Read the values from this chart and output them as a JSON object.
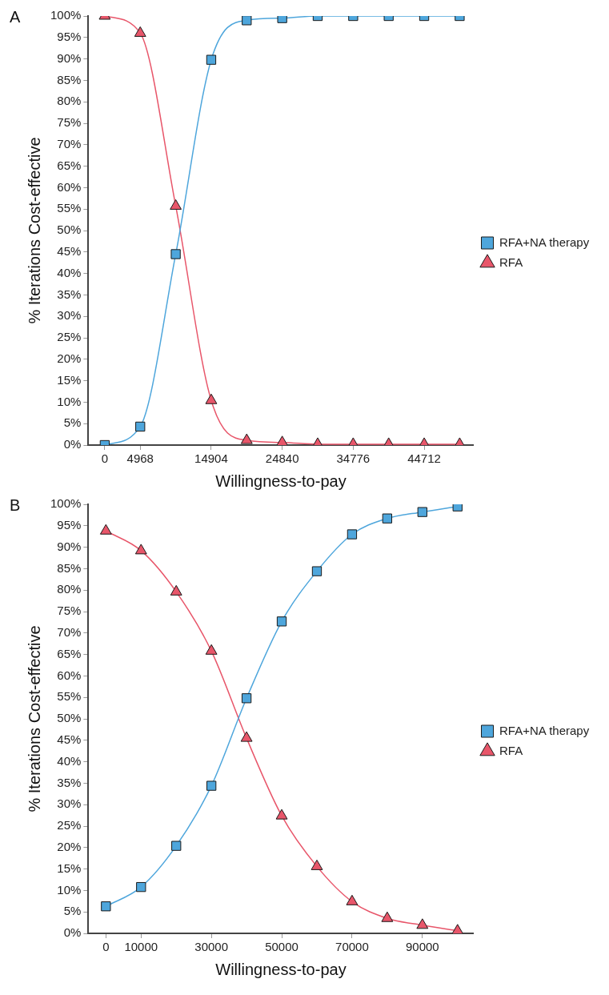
{
  "chart_data": [
    {
      "type": "line",
      "xlabel": "Willingness-to-pay",
      "ylabel": "% Iterations Cost-effective",
      "annotations": [
        "A"
      ],
      "x": [
        0,
        4968,
        9936,
        14904,
        19872,
        24840,
        29808,
        34776,
        39744,
        44712,
        49680
      ],
      "series": [
        {
          "name": "RFA+NA therapy",
          "color": "#4ea6dc",
          "marker": "square",
          "values": [
            0,
            4.3,
            44.5,
            89.8,
            99,
            99.5,
            100,
            100,
            100,
            100,
            100
          ]
        },
        {
          "name": "RFA",
          "color": "#e8566a",
          "marker": "triangle",
          "values": [
            100,
            96,
            55.7,
            10.4,
            1.1,
            0.6,
            0.2,
            0.2,
            0.2,
            0.2,
            0.2
          ]
        }
      ],
      "xlim": [
        -2300,
        51600
      ],
      "xticks": [
        0,
        4968,
        14904,
        24840,
        34776,
        44712
      ],
      "ylim": [
        0,
        100
      ],
      "yticks": [
        {
          "value": 0,
          "label": "0%"
        },
        {
          "value": 5,
          "label": "5%"
        },
        {
          "value": 10,
          "label": "10%"
        },
        {
          "value": 15,
          "label": "15%"
        },
        {
          "value": 20,
          "label": "20%"
        },
        {
          "value": 25,
          "label": "25%"
        },
        {
          "value": 30,
          "label": "30%"
        },
        {
          "value": 35,
          "label": "35%"
        },
        {
          "value": 40,
          "label": "40%"
        },
        {
          "value": 45,
          "label": "45%"
        },
        {
          "value": 50,
          "label": "50%"
        },
        {
          "value": 55,
          "label": "55%"
        },
        {
          "value": 60,
          "label": "60%"
        },
        {
          "value": 65,
          "label": "65%"
        },
        {
          "value": 70,
          "label": "70%"
        },
        {
          "value": 75,
          "label": "75%"
        },
        {
          "value": 80,
          "label": "80%"
        },
        {
          "value": 85,
          "label": "85%"
        },
        {
          "value": 90,
          "label": "90%"
        },
        {
          "value": 95,
          "label": "95%"
        },
        {
          "value": 100,
          "label": "100%"
        }
      ],
      "grid": false,
      "legend": "right",
      "line_style": "solid"
    },
    {
      "type": "line",
      "xlabel": "Willingness-to-pay",
      "ylabel": "% Iterations Cost-effective",
      "annotations": [
        "B"
      ],
      "x": [
        0,
        10000,
        20000,
        30000,
        40000,
        50000,
        60000,
        70000,
        80000,
        90000,
        100000
      ],
      "series": [
        {
          "name": "RFA+NA therapy",
          "color": "#4ea6dc",
          "marker": "square",
          "values": [
            6.3,
            10.8,
            20.4,
            34.4,
            54.8,
            72.7,
            84.4,
            93,
            96.7,
            98.2,
            99.5
          ]
        },
        {
          "name": "RFA",
          "color": "#e8566a",
          "marker": "triangle",
          "values": [
            93.8,
            89.2,
            79.6,
            65.8,
            45.5,
            27.4,
            15.6,
            7.4,
            3.5,
            1.9,
            0.6
          ]
        }
      ],
      "xlim": [
        -5000,
        104500
      ],
      "xticks": [
        0,
        10000,
        30000,
        50000,
        70000,
        90000
      ],
      "ylim": [
        0,
        100
      ],
      "yticks": [
        {
          "value": 0,
          "label": "0%"
        },
        {
          "value": 5,
          "label": "5%"
        },
        {
          "value": 10,
          "label": "10%"
        },
        {
          "value": 15,
          "label": "15%"
        },
        {
          "value": 20,
          "label": "20%"
        },
        {
          "value": 25,
          "label": "25%"
        },
        {
          "value": 30,
          "label": "30%"
        },
        {
          "value": 35,
          "label": "35%"
        },
        {
          "value": 40,
          "label": "40%"
        },
        {
          "value": 45,
          "label": "45%"
        },
        {
          "value": 50,
          "label": "50%"
        },
        {
          "value": 55,
          "label": "55%"
        },
        {
          "value": 60,
          "label": "60%"
        },
        {
          "value": 65,
          "label": "65%"
        },
        {
          "value": 70,
          "label": "70%"
        },
        {
          "value": 75,
          "label": "75%"
        },
        {
          "value": 80,
          "label": "80%"
        },
        {
          "value": 85,
          "label": "85%"
        },
        {
          "value": 90,
          "label": "90%"
        },
        {
          "value": 95,
          "label": "95%"
        },
        {
          "value": 100,
          "label": "100%"
        }
      ],
      "grid": false,
      "legend": "right",
      "line_style": "solid"
    }
  ]
}
